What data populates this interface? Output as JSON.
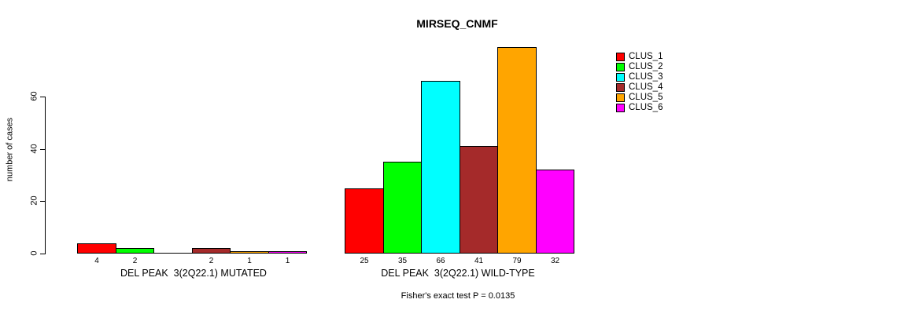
{
  "chart_data": {
    "type": "bar",
    "title": "MIRSEQ_CNMF",
    "ylabel": "number of cases",
    "xlabel": "",
    "ylim": [
      0,
      60
    ],
    "y_ticks": [
      0,
      20,
      40,
      60
    ],
    "grid": false,
    "legend_position": "right",
    "series_colors": [
      "#FF0000",
      "#00FF00",
      "#00FFFF",
      "#A52A2A",
      "#FFA500",
      "#FF00FF"
    ],
    "legend": [
      {
        "label": "CLUS_1",
        "color": "#FF0000"
      },
      {
        "label": "CLUS_2",
        "color": "#00FF00"
      },
      {
        "label": "CLUS_3",
        "color": "#00FFFF"
      },
      {
        "label": "CLUS_4",
        "color": "#A52A2A"
      },
      {
        "label": "CLUS_5",
        "color": "#FFA500"
      },
      {
        "label": "CLUS_6",
        "color": "#FF00FF"
      }
    ],
    "groups": [
      {
        "label": "DEL PEAK  3(2Q22.1) MUTATED",
        "values": [
          4,
          2,
          0,
          2,
          1,
          1
        ],
        "bar_labels": [
          "4",
          "2",
          "",
          "2",
          "1",
          "1"
        ]
      },
      {
        "label": "DEL PEAK  3(2Q22.1) WILD-TYPE",
        "values": [
          25,
          35,
          66,
          41,
          79,
          32
        ],
        "bar_labels": [
          "25",
          "35",
          "66",
          "41",
          "79",
          "32"
        ]
      }
    ],
    "annotation": "Fisher's exact test P = 0.0135"
  }
}
